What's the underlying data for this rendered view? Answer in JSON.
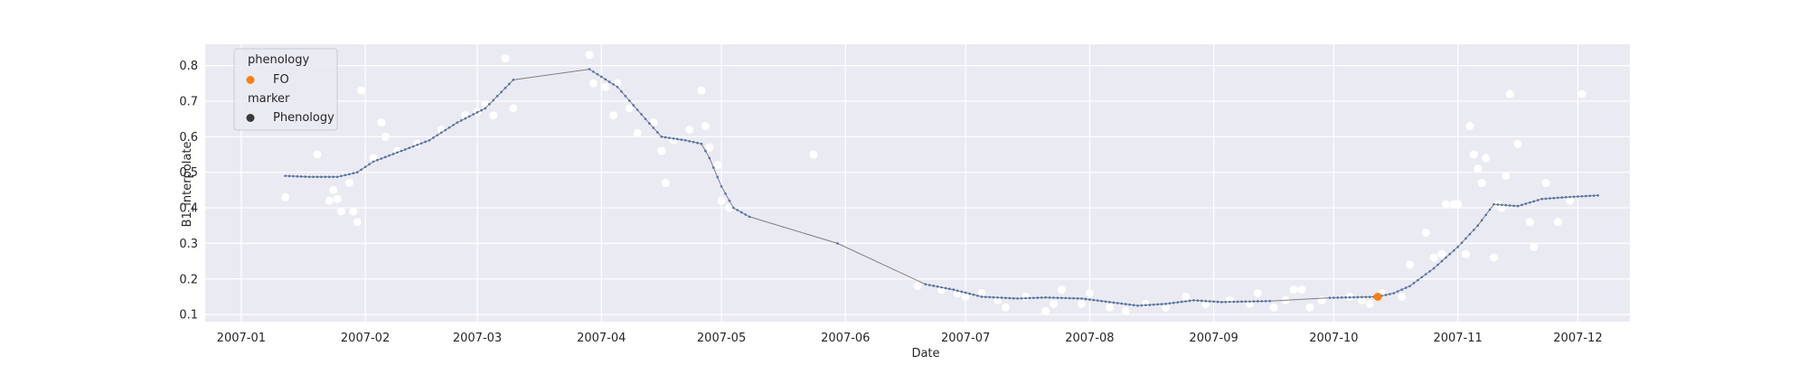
{
  "chart_data": {
    "type": "scatter",
    "title": "",
    "xlabel": "Date",
    "ylabel": "B1_interpolate",
    "x_tick_labels": [
      "2007-01",
      "2007-02",
      "2007-03",
      "2007-04",
      "2007-05",
      "2007-06",
      "2007-07",
      "2007-08",
      "2007-09",
      "2007-10",
      "2007-11",
      "2007-12"
    ],
    "y_tick_labels": [
      "0.1",
      "0.2",
      "0.3",
      "0.4",
      "0.5",
      "0.6",
      "0.7",
      "0.8"
    ],
    "xlim": [
      "2006-12-23",
      "2007-12-14"
    ],
    "ylim": [
      0.08,
      0.86
    ],
    "grid": true,
    "style": {
      "background": "#eaeaf2",
      "grid_color": "#ffffff",
      "raw_point_color": "#ffffff",
      "line_color": "#7f7f7f",
      "marker_color": "#4c72b0",
      "fo_color": "#ff7f0e",
      "legend_marker_color": "#3a3a3a"
    },
    "legend": {
      "placement": "top-left",
      "title_1": "phenology",
      "entry_1": "FO",
      "title_2": "marker",
      "entry_2": "Phenology"
    },
    "series": [
      {
        "role": "raw-observations",
        "points": [
          [
            "2007-01-12",
            0.43
          ],
          [
            "2007-01-20",
            0.55
          ],
          [
            "2007-01-23",
            0.42
          ],
          [
            "2007-01-24",
            0.45
          ],
          [
            "2007-01-25",
            0.425
          ],
          [
            "2007-01-26",
            0.39
          ],
          [
            "2007-01-28",
            0.47
          ],
          [
            "2007-01-29",
            0.39
          ],
          [
            "2007-01-30",
            0.36
          ],
          [
            "2007-01-31",
            0.73
          ],
          [
            "2007-02-03",
            0.54
          ],
          [
            "2007-02-05",
            0.64
          ],
          [
            "2007-02-06",
            0.6
          ],
          [
            "2007-02-09",
            0.56
          ],
          [
            "2007-02-14",
            0.58
          ],
          [
            "2007-02-20",
            0.62
          ],
          [
            "2007-02-26",
            0.66
          ],
          [
            "2007-03-01",
            0.67
          ],
          [
            "2007-03-03",
            0.69
          ],
          [
            "2007-03-05",
            0.66
          ],
          [
            "2007-03-08",
            0.82
          ],
          [
            "2007-03-10",
            0.68
          ],
          [
            "2007-03-29",
            0.83
          ],
          [
            "2007-03-30",
            0.75
          ],
          [
            "2007-04-02",
            0.74
          ],
          [
            "2007-04-04",
            0.66
          ],
          [
            "2007-04-05",
            0.75
          ],
          [
            "2007-04-08",
            0.68
          ],
          [
            "2007-04-10",
            0.61
          ],
          [
            "2007-04-14",
            0.64
          ],
          [
            "2007-04-16",
            0.56
          ],
          [
            "2007-04-17",
            0.47
          ],
          [
            "2007-04-19",
            0.59
          ],
          [
            "2007-04-23",
            0.62
          ],
          [
            "2007-04-26",
            0.73
          ],
          [
            "2007-04-27",
            0.63
          ],
          [
            "2007-04-28",
            0.57
          ],
          [
            "2007-04-30",
            0.52
          ],
          [
            "2007-05-01",
            0.42
          ],
          [
            "2007-05-03",
            0.4
          ],
          [
            "2007-05-24",
            0.55
          ],
          [
            "2007-06-19",
            0.18
          ],
          [
            "2007-06-25",
            0.17
          ],
          [
            "2007-06-29",
            0.16
          ],
          [
            "2007-07-01",
            0.15
          ],
          [
            "2007-07-05",
            0.16
          ],
          [
            "2007-07-09",
            0.14
          ],
          [
            "2007-07-11",
            0.12
          ],
          [
            "2007-07-16",
            0.15
          ],
          [
            "2007-07-21",
            0.11
          ],
          [
            "2007-07-23",
            0.13
          ],
          [
            "2007-07-25",
            0.17
          ],
          [
            "2007-07-30",
            0.13
          ],
          [
            "2007-08-01",
            0.16
          ],
          [
            "2007-08-06",
            0.12
          ],
          [
            "2007-08-10",
            0.11
          ],
          [
            "2007-08-15",
            0.13
          ],
          [
            "2007-08-20",
            0.12
          ],
          [
            "2007-08-25",
            0.15
          ],
          [
            "2007-08-30",
            0.13
          ],
          [
            "2007-09-05",
            0.14
          ],
          [
            "2007-09-10",
            0.13
          ],
          [
            "2007-09-12",
            0.16
          ],
          [
            "2007-09-16",
            0.12
          ],
          [
            "2007-09-19",
            0.14
          ],
          [
            "2007-09-21",
            0.17
          ],
          [
            "2007-09-23",
            0.17
          ],
          [
            "2007-09-25",
            0.12
          ],
          [
            "2007-09-28",
            0.14
          ],
          [
            "2007-10-05",
            0.15
          ],
          [
            "2007-10-08",
            0.14
          ],
          [
            "2007-10-10",
            0.13
          ],
          [
            "2007-10-13",
            0.16
          ],
          [
            "2007-10-18",
            0.15
          ],
          [
            "2007-10-20",
            0.24
          ],
          [
            "2007-10-24",
            0.33
          ],
          [
            "2007-10-26",
            0.26
          ],
          [
            "2007-10-28",
            0.27
          ],
          [
            "2007-10-29",
            0.41
          ],
          [
            "2007-10-31",
            0.41
          ],
          [
            "2007-11-01",
            0.41
          ],
          [
            "2007-11-03",
            0.27
          ],
          [
            "2007-11-04",
            0.63
          ],
          [
            "2007-11-05",
            0.55
          ],
          [
            "2007-11-06",
            0.51
          ],
          [
            "2007-11-07",
            0.47
          ],
          [
            "2007-11-08",
            0.54
          ],
          [
            "2007-11-10",
            0.26
          ],
          [
            "2007-11-11",
            0.41
          ],
          [
            "2007-11-12",
            0.4
          ],
          [
            "2007-11-13",
            0.49
          ],
          [
            "2007-11-14",
            0.72
          ],
          [
            "2007-11-16",
            0.58
          ],
          [
            "2007-11-19",
            0.36
          ],
          [
            "2007-11-20",
            0.29
          ],
          [
            "2007-11-23",
            0.47
          ],
          [
            "2007-11-26",
            0.36
          ],
          [
            "2007-11-29",
            0.42
          ],
          [
            "2007-12-02",
            0.72
          ]
        ]
      },
      {
        "role": "interpolated-line",
        "points": [
          [
            "2007-01-12",
            0.49
          ],
          [
            "2007-01-18",
            0.487
          ],
          [
            "2007-01-25",
            0.487
          ],
          [
            "2007-01-30",
            0.5
          ],
          [
            "2007-02-03",
            0.53
          ],
          [
            "2007-02-10",
            0.56
          ],
          [
            "2007-02-17",
            0.59
          ],
          [
            "2007-02-24",
            0.64
          ],
          [
            "2007-03-03",
            0.68
          ],
          [
            "2007-03-10",
            0.76
          ],
          [
            "2007-03-29",
            0.79
          ],
          [
            "2007-04-05",
            0.74
          ],
          [
            "2007-04-12",
            0.65
          ],
          [
            "2007-04-16",
            0.6
          ],
          [
            "2007-04-22",
            0.59
          ],
          [
            "2007-04-26",
            0.58
          ],
          [
            "2007-04-28",
            0.54
          ],
          [
            "2007-05-01",
            0.46
          ],
          [
            "2007-05-04",
            0.4
          ],
          [
            "2007-05-08",
            0.375
          ],
          [
            "2007-05-30",
            0.3
          ],
          [
            "2007-06-21",
            0.185
          ],
          [
            "2007-06-28",
            0.17
          ],
          [
            "2007-07-05",
            0.15
          ],
          [
            "2007-07-14",
            0.145
          ],
          [
            "2007-07-21",
            0.148
          ],
          [
            "2007-07-30",
            0.145
          ],
          [
            "2007-08-06",
            0.135
          ],
          [
            "2007-08-13",
            0.125
          ],
          [
            "2007-08-20",
            0.13
          ],
          [
            "2007-08-27",
            0.14
          ],
          [
            "2007-09-03",
            0.135
          ],
          [
            "2007-09-15",
            0.138
          ],
          [
            "2007-09-30",
            0.147
          ],
          [
            "2007-10-12",
            0.15
          ],
          [
            "2007-10-16",
            0.16
          ],
          [
            "2007-10-20",
            0.18
          ],
          [
            "2007-10-26",
            0.23
          ],
          [
            "2007-11-01",
            0.29
          ],
          [
            "2007-11-06",
            0.35
          ],
          [
            "2007-11-10",
            0.41
          ],
          [
            "2007-11-16",
            0.405
          ],
          [
            "2007-11-22",
            0.425
          ],
          [
            "2007-11-28",
            0.43
          ],
          [
            "2007-12-06",
            0.435
          ]
        ]
      },
      {
        "role": "FO",
        "points": [
          [
            "2007-10-12",
            0.15
          ]
        ]
      }
    ]
  }
}
